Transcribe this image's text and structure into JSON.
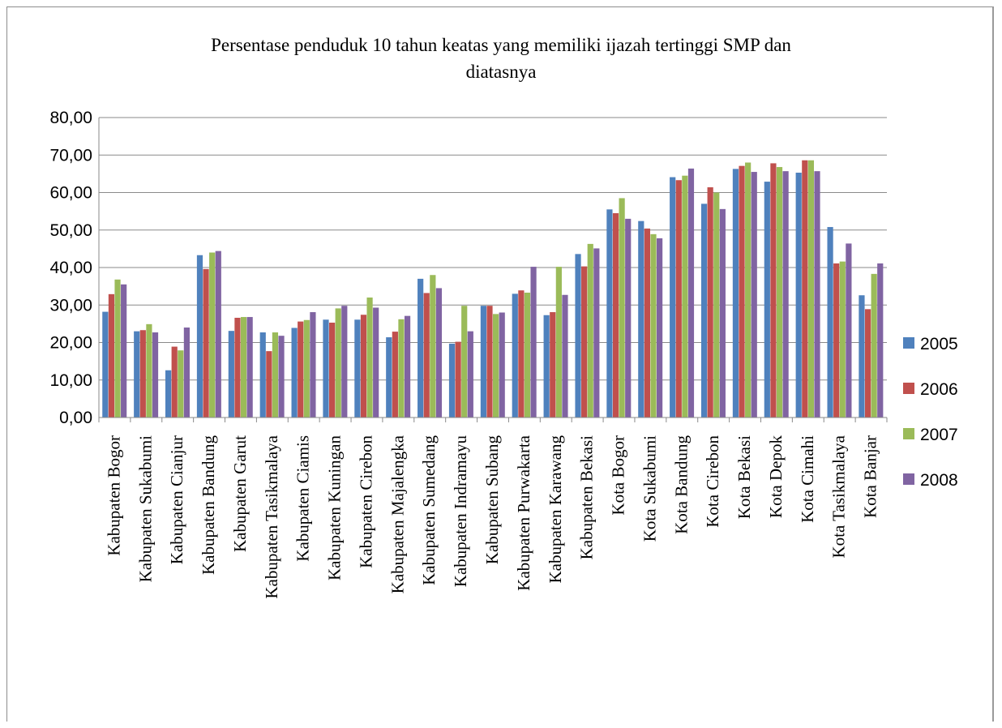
{
  "chart_data": {
    "type": "bar",
    "title": "Persentase penduduk 10 tahun keatas yang memiliki ijazah tertinggi SMP dan diatasnya",
    "title_lines": [
      "Persentase penduduk 10 tahun keatas yang memiliki ijazah tertinggi SMP dan",
      "diatasnya"
    ],
    "xlabel": "",
    "ylabel": "",
    "ylim": [
      0,
      80
    ],
    "yticks": [
      0,
      10,
      20,
      30,
      40,
      50,
      60,
      70,
      80
    ],
    "ytick_labels": [
      "0,00",
      "10,00",
      "20,00",
      "30,00",
      "40,00",
      "50,00",
      "60,00",
      "70,00",
      "80,00"
    ],
    "grid": true,
    "legend_position": "right",
    "categories": [
      "Kabupaten Bogor",
      "Kabupaten Sukabumi",
      "Kabupaten Cianjur",
      "Kabupaten Bandung",
      "Kabupaten Garut",
      "Kabupaten Tasikmalaya",
      "Kabupaten Ciamis",
      "Kabupaten Kuningan",
      "Kabupaten Cirebon",
      "Kabupaten Majalengka",
      "Kabupaten Sumedang",
      "Kabupaten Indramayu",
      "Kabupaten Subang",
      "Kabupaten Purwakarta",
      "Kabupaten Karawang",
      "Kabupaten Bekasi",
      "Kota Bogor",
      "Kota Sukabumi",
      "Kota Bandung",
      "Kota Cirebon",
      "Kota Bekasi",
      "Kota Depok",
      "Kota Cimahi",
      "Kota Tasikmalaya",
      "Kota Banjar"
    ],
    "series": [
      {
        "name": "2005",
        "color": "#4f81bd",
        "values": [
          28.2,
          23.0,
          12.6,
          43.3,
          23.1,
          22.7,
          23.9,
          26.1,
          26.1,
          21.4,
          37.0,
          19.7,
          29.8,
          33.0,
          27.3,
          43.6,
          55.5,
          52.4,
          64.1,
          57.0,
          66.3,
          62.9,
          65.3,
          50.8,
          32.6
        ]
      },
      {
        "name": "2006",
        "color": "#c0504d",
        "values": [
          32.9,
          23.3,
          18.9,
          39.6,
          26.6,
          17.7,
          25.6,
          25.3,
          27.4,
          22.9,
          33.2,
          20.2,
          29.8,
          33.9,
          28.1,
          40.3,
          54.5,
          50.4,
          63.3,
          61.4,
          67.1,
          67.8,
          68.6,
          41.1,
          28.9
        ]
      },
      {
        "name": "2007",
        "color": "#9bbb59",
        "values": [
          36.8,
          24.9,
          17.9,
          44.0,
          26.8,
          22.7,
          26.0,
          29.1,
          32.0,
          26.2,
          38.0,
          29.8,
          27.6,
          33.3,
          40.2,
          46.3,
          58.5,
          48.9,
          64.5,
          60.0,
          68.0,
          66.8,
          68.6,
          41.6,
          38.3
        ]
      },
      {
        "name": "2008",
        "color": "#8064a2",
        "values": [
          35.5,
          22.7,
          24.0,
          44.4,
          26.8,
          21.8,
          28.1,
          29.8,
          29.3,
          27.1,
          34.5,
          23.0,
          28.0,
          40.2,
          32.7,
          45.1,
          53.0,
          47.8,
          66.4,
          55.6,
          65.5,
          65.7,
          65.7,
          46.4,
          41.1
        ]
      }
    ]
  }
}
